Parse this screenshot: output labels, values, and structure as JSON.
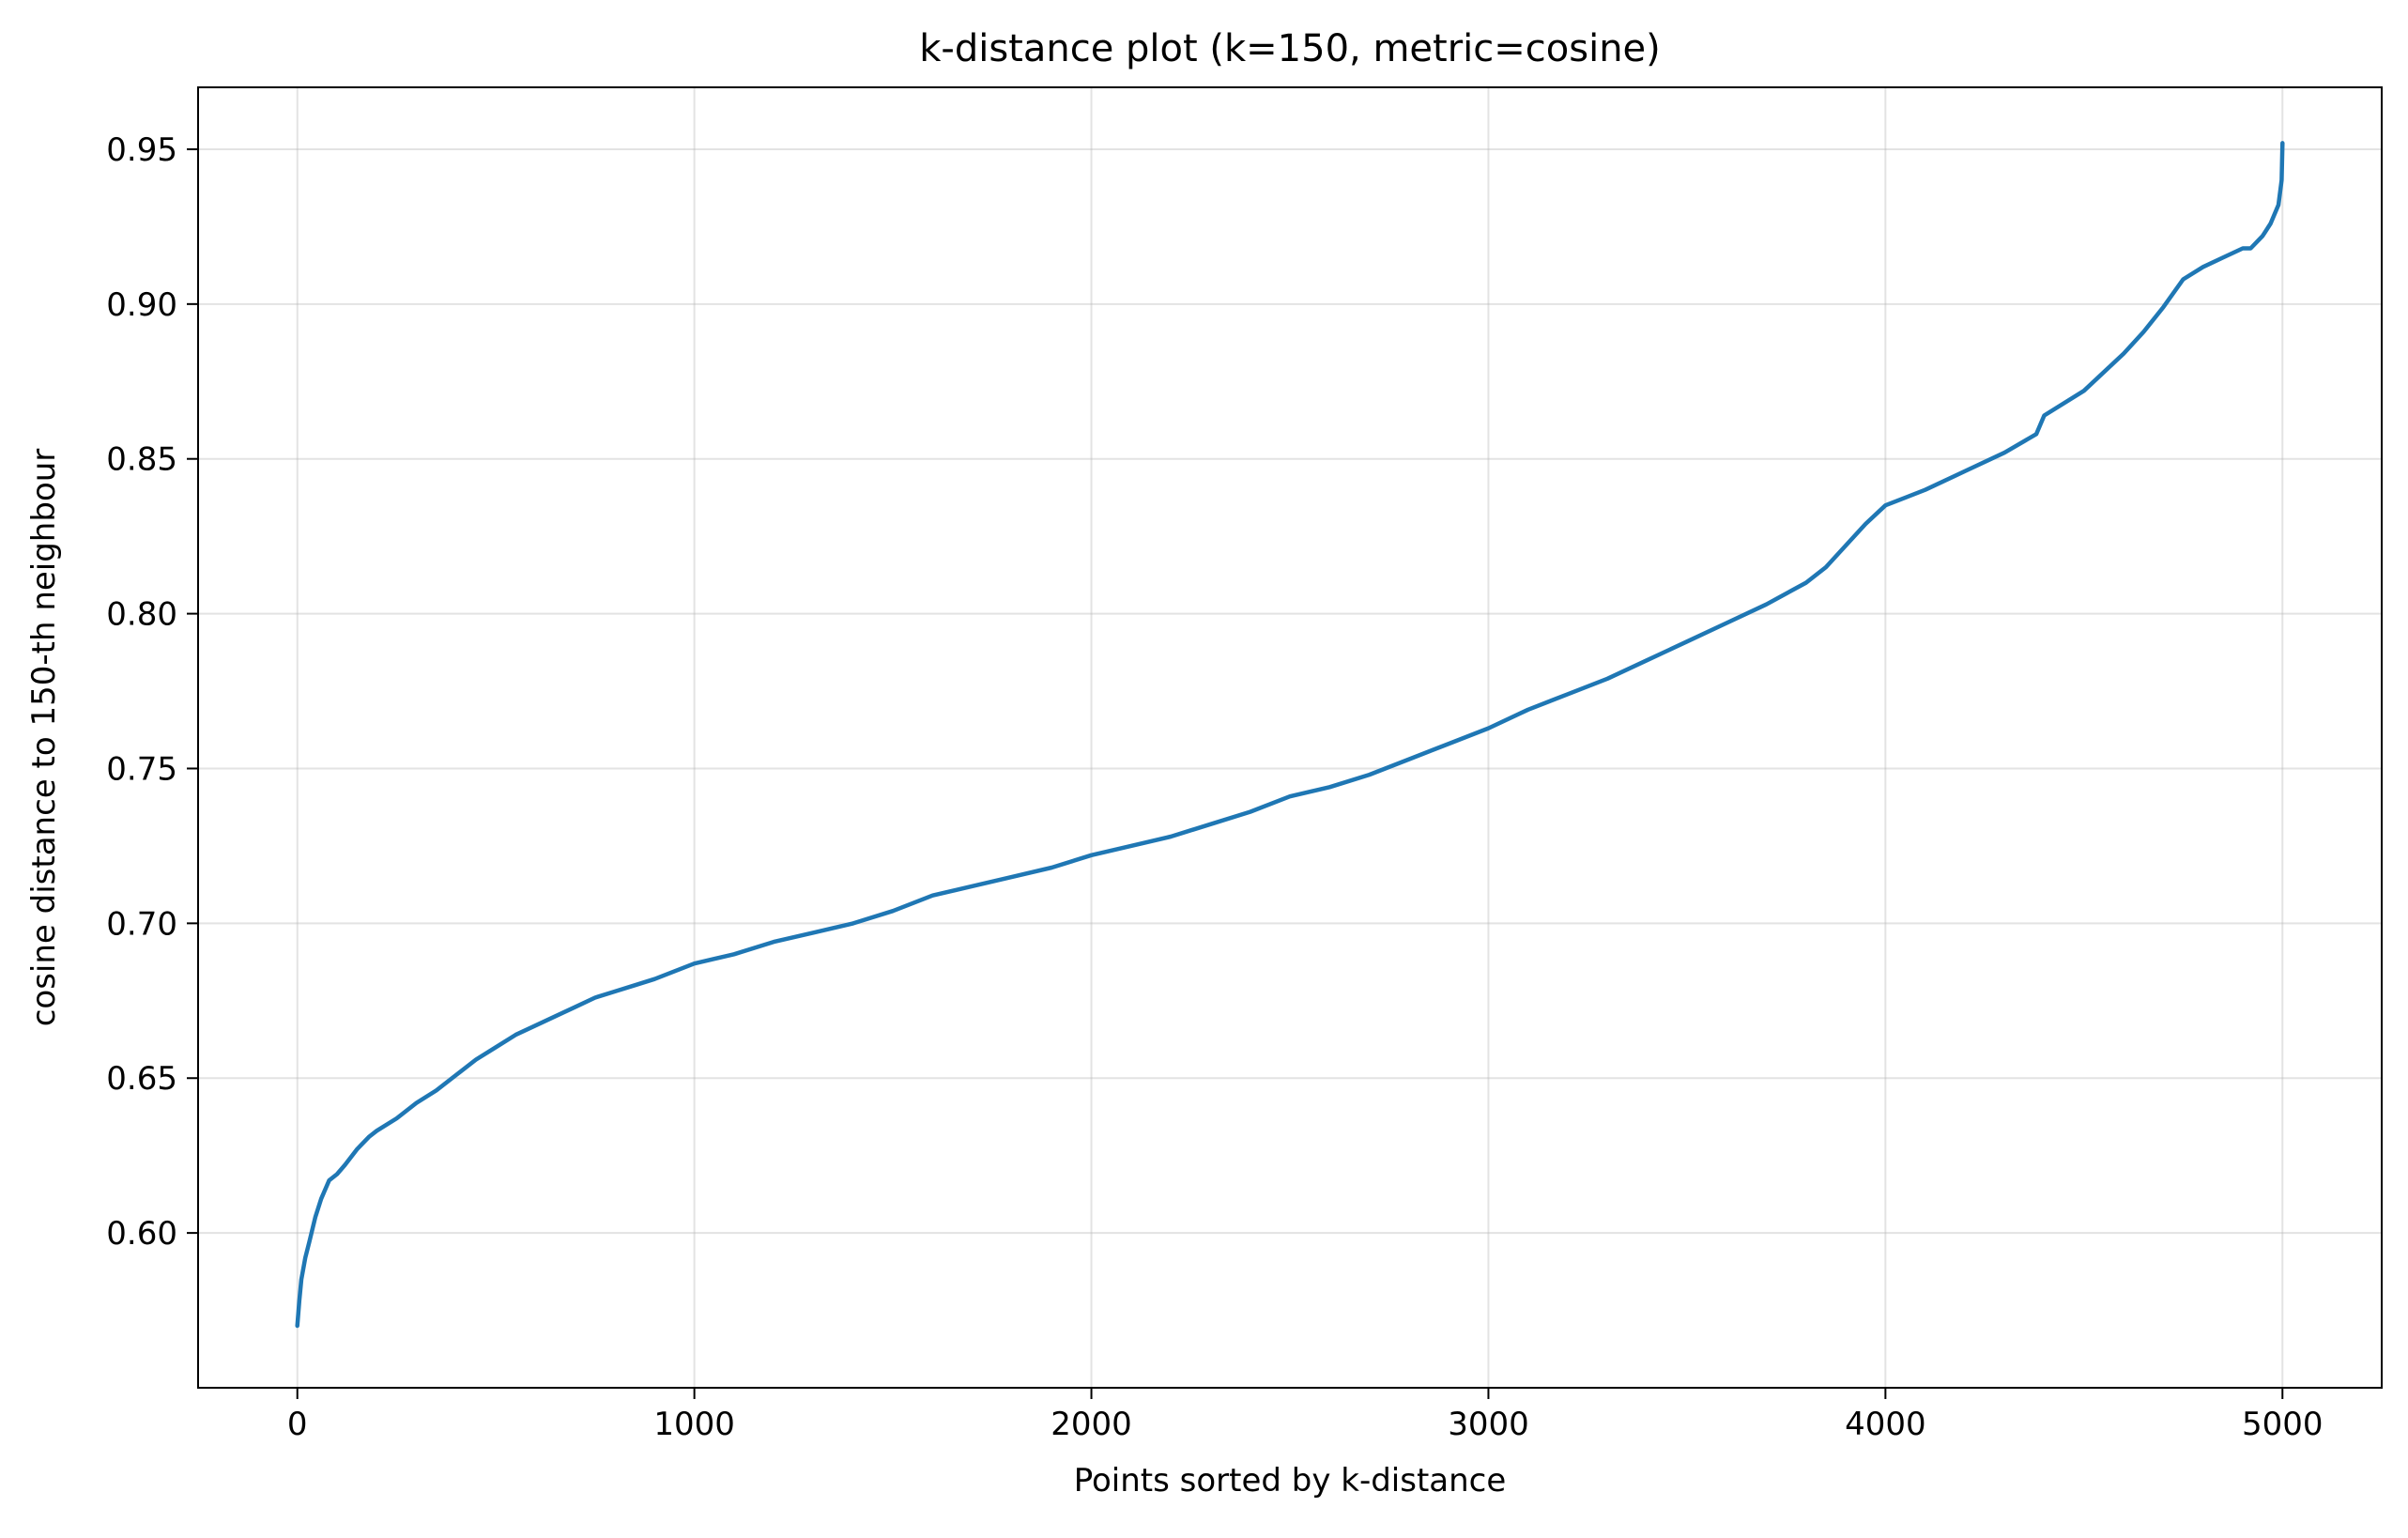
{
  "chart_data": {
    "type": "line",
    "title": "k-distance plot (k=150, metric=cosine)",
    "xlabel": "Points sorted by k-distance",
    "ylabel": "cosine distance to 150-th neighbour",
    "xlim": [
      -250,
      5250
    ],
    "ylim": [
      0.55,
      0.97
    ],
    "xticks": [
      0,
      1000,
      2000,
      3000,
      4000,
      5000
    ],
    "xtick_labels": [
      "0",
      "1000",
      "2000",
      "3000",
      "4000",
      "5000"
    ],
    "yticks": [
      0.6,
      0.65,
      0.7,
      0.75,
      0.8,
      0.85,
      0.9,
      0.95
    ],
    "ytick_labels": [
      "0.60",
      "0.65",
      "0.70",
      "0.75",
      "0.80",
      "0.85",
      "0.90",
      "0.95"
    ],
    "grid": true,
    "line_color": "#1f77b4",
    "series": [
      {
        "x": [
          0,
          5,
          10,
          20,
          30,
          45,
          60,
          80,
          100,
          120,
          150,
          180,
          200,
          250,
          300,
          350,
          400,
          450,
          500,
          550,
          600,
          650,
          700,
          750,
          800,
          850,
          900,
          1000,
          1100,
          1200,
          1300,
          1400,
          1500,
          1600,
          1700,
          1800,
          1900,
          2000,
          2100,
          2200,
          2300,
          2400,
          2500,
          2600,
          2700,
          2800,
          2900,
          3000,
          3100,
          3200,
          3300,
          3400,
          3500,
          3600,
          3700,
          3800,
          3850,
          3900,
          3950,
          4000,
          4100,
          4200,
          4300,
          4380,
          4400,
          4500,
          4600,
          4650,
          4700,
          4750,
          4800,
          4850,
          4900,
          4920,
          4950,
          4970,
          4990,
          4998,
          5000
        ],
        "y": [
          0.57,
          0.578,
          0.585,
          0.592,
          0.597,
          0.605,
          0.611,
          0.617,
          0.619,
          0.622,
          0.627,
          0.631,
          0.633,
          0.637,
          0.642,
          0.646,
          0.651,
          0.656,
          0.66,
          0.664,
          0.667,
          0.67,
          0.673,
          0.676,
          0.678,
          0.68,
          0.682,
          0.687,
          0.69,
          0.694,
          0.697,
          0.7,
          0.704,
          0.709,
          0.712,
          0.715,
          0.718,
          0.722,
          0.725,
          0.728,
          0.732,
          0.736,
          0.741,
          0.744,
          0.748,
          0.753,
          0.758,
          0.763,
          0.769,
          0.774,
          0.779,
          0.785,
          0.791,
          0.797,
          0.803,
          0.81,
          0.815,
          0.822,
          0.829,
          0.835,
          0.84,
          0.846,
          0.852,
          0.858,
          0.864,
          0.872,
          0.884,
          0.891,
          0.899,
          0.908,
          0.912,
          0.915,
          0.918,
          0.918,
          0.922,
          0.926,
          0.932,
          0.94,
          0.952
        ]
      }
    ]
  }
}
